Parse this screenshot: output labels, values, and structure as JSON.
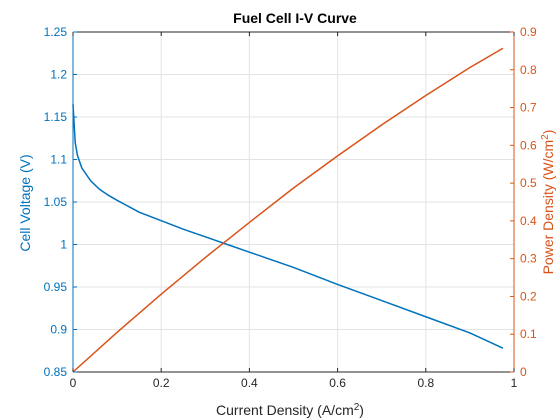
{
  "chart_data": {
    "type": "line",
    "title": "Fuel Cell I-V Curve",
    "xlabel": {
      "main": "Current Density (A/cm",
      "sup": "2",
      "tail": ")"
    },
    "ylabel_left": "Cell Voltage (V)",
    "ylabel_right": {
      "main": "Power Density (W/cm",
      "sup": "2",
      "tail": ")"
    },
    "xlim": [
      0,
      1
    ],
    "ylim_left": [
      0.85,
      1.25
    ],
    "ylim_right": [
      0,
      0.9
    ],
    "x_ticks": [
      "0",
      "0.2",
      "0.4",
      "0.6",
      "0.8",
      "1"
    ],
    "y_left_ticks": [
      "0.85",
      "0.9",
      "0.95",
      "1",
      "1.05",
      "1.1",
      "1.15",
      "1.2",
      "1.25"
    ],
    "y_right_ticks": [
      "0",
      "0.1",
      "0.2",
      "0.3",
      "0.4",
      "0.5",
      "0.6",
      "0.7",
      "0.8",
      "0.9"
    ],
    "grid": true,
    "colors": {
      "voltage": "#0072BD",
      "power": "#D95319",
      "grid": "#e3e3e3",
      "axis": "#262626"
    },
    "series": [
      {
        "axis": "left",
        "x": [
          0.0,
          0.005,
          0.01,
          0.02,
          0.04,
          0.06,
          0.08,
          0.1,
          0.15,
          0.2,
          0.25,
          0.3,
          0.35,
          0.4,
          0.5,
          0.6,
          0.7,
          0.8,
          0.9,
          0.975
        ],
        "y": [
          1.165,
          1.12,
          1.105,
          1.09,
          1.075,
          1.065,
          1.058,
          1.052,
          1.038,
          1.028,
          1.018,
          1.009,
          1.0,
          0.991,
          0.973,
          0.953,
          0.934,
          0.915,
          0.896,
          0.878
        ]
      },
      {
        "axis": "right",
        "x": [
          0.0,
          0.1,
          0.2,
          0.3,
          0.4,
          0.5,
          0.6,
          0.7,
          0.8,
          0.9,
          0.975
        ],
        "y": [
          0.0,
          0.105,
          0.206,
          0.303,
          0.396,
          0.487,
          0.572,
          0.654,
          0.732,
          0.806,
          0.857
        ]
      }
    ]
  }
}
